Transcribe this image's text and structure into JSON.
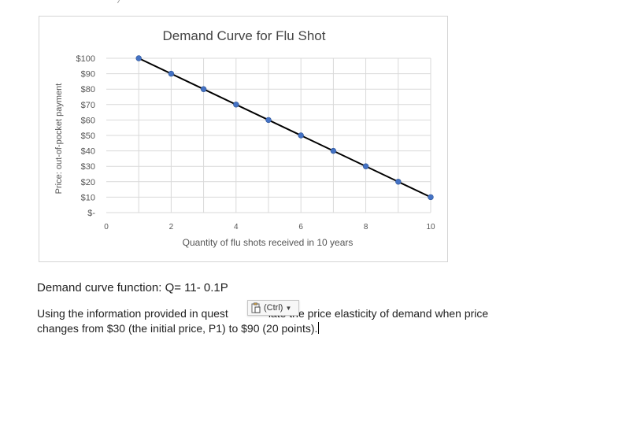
{
  "chart_data": {
    "type": "line",
    "title": "Demand Curve for Flu Shot",
    "xlabel": "Quantity of flu shots received in 10 years",
    "ylabel": "Price: out-of-pocket payment",
    "x": [
      1,
      2,
      3,
      4,
      5,
      6,
      7,
      8,
      9,
      10
    ],
    "y": [
      100,
      90,
      80,
      70,
      60,
      50,
      40,
      30,
      20,
      10
    ],
    "xlim": [
      0,
      10
    ],
    "ylim": [
      0,
      100
    ],
    "x_ticks": [
      "0",
      "2",
      "4",
      "6",
      "8",
      "10"
    ],
    "y_ticks": [
      "$-",
      "$10",
      "$20",
      "$30",
      "$40",
      "$50",
      "$60",
      "$70",
      "$80",
      "$90",
      "$100"
    ],
    "grid": true,
    "line_color": "#000000",
    "marker_color": "#4472c4"
  },
  "document": {
    "function_text": "Demand curve function: Q= 11- 0.1P",
    "question_part1": "Using the information provided in quest",
    "question_part2": "late the price elasticity of demand when price",
    "question_line2": "changes from $30 (the initial price, P1) to $90 (20 points)."
  },
  "paste_options": {
    "label": "(Ctrl)",
    "icon": "clipboard-icon"
  }
}
